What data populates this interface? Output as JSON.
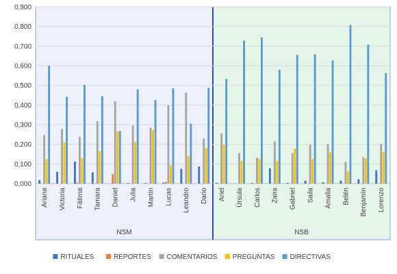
{
  "chart_data": {
    "type": "bar",
    "ylim": [
      0,
      0.9
    ],
    "yticks": [
      "0,000",
      "0,100",
      "0,200",
      "0,300",
      "0,400",
      "0,500",
      "0,600",
      "0,700",
      "0,800",
      "0,900"
    ],
    "grid": true,
    "legend_position": "bottom",
    "groups": [
      {
        "label": "NSM",
        "background": "#eef0fb",
        "names": [
          "Ariana",
          "Victoria",
          "Fátima",
          "Tamara",
          "Daniel",
          "Julia",
          "Martín",
          "Lucas",
          "Leandro",
          "Dario"
        ]
      },
      {
        "label": "NSB",
        "background": "#e6f5ea",
        "names": [
          "Ariel",
          "Úrsula",
          "Carlos",
          "Zaira",
          "Gabriel",
          "Saila",
          "Amalia",
          "Belén",
          "Benjamín",
          "Lorenzo"
        ]
      }
    ],
    "categories": [
      "Ariana",
      "Victoria",
      "Fátima",
      "Tamara",
      "Daniel",
      "Julia",
      "Martín",
      "Lucas",
      "Leandro",
      "Dario",
      "Ariel",
      "Úrsula",
      "Carlos",
      "Zaira",
      "Gabriel",
      "Saila",
      "Amalia",
      "Belén",
      "Benjamín",
      "Lorenzo"
    ],
    "series": [
      {
        "name": "RITUALES",
        "color": "#4472c4",
        "values": [
          0.018,
          0.06,
          0.112,
          0.057,
          0.0,
          0.003,
          0.003,
          0.005,
          0.075,
          0.087,
          0.004,
          0.0,
          0.003,
          0.078,
          0.004,
          0.015,
          0.007,
          0.015,
          0.022,
          0.068
        ]
      },
      {
        "name": "REPORTES",
        "color": "#ed7d31",
        "values": [
          0.0,
          0.0,
          0.005,
          0.0,
          0.048,
          0.0,
          0.0,
          0.008,
          0.0,
          0.0,
          0.0,
          0.0,
          0.0,
          0.0,
          0.0,
          0.0,
          0.0,
          0.0,
          0.0,
          0.0
        ]
      },
      {
        "name": "COMENTARIOS",
        "color": "#a5a5a5",
        "values": [
          0.248,
          0.278,
          0.238,
          0.318,
          0.418,
          0.295,
          0.285,
          0.4,
          0.463,
          0.23,
          0.255,
          0.155,
          0.132,
          0.215,
          0.155,
          0.198,
          0.2,
          0.11,
          0.135,
          0.2
        ]
      },
      {
        "name": "PREGUNTAS",
        "color": "#ffc000",
        "values": [
          0.125,
          0.21,
          0.13,
          0.165,
          0.265,
          0.212,
          0.272,
          0.093,
          0.14,
          0.18,
          0.198,
          0.115,
          0.125,
          0.115,
          0.178,
          0.125,
          0.158,
          0.062,
          0.128,
          0.16
        ]
      },
      {
        "name": "DIRECTIVAS",
        "color": "#5b9bd5",
        "values": [
          0.6,
          0.442,
          0.503,
          0.445,
          0.268,
          0.48,
          0.425,
          0.485,
          0.305,
          0.487,
          0.533,
          0.728,
          0.745,
          0.58,
          0.655,
          0.658,
          0.628,
          0.808,
          0.708,
          0.562
        ]
      }
    ]
  }
}
